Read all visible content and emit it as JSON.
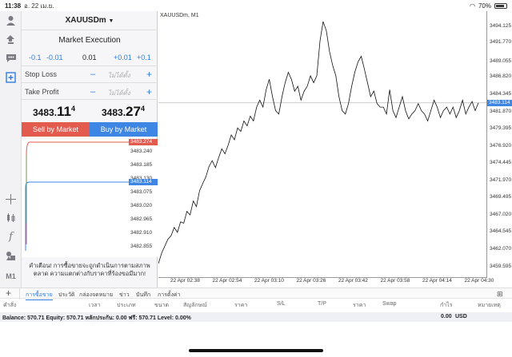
{
  "statusbar": {
    "time": "11:38",
    "date": "อ. 22 เม.ย.",
    "battery": "70%",
    "battery_level": 0.7
  },
  "order": {
    "symbol": "XAUUSDm",
    "execution": "Market Execution",
    "lot_buttons": [
      "-0.1",
      "-0.01",
      "0.01",
      "+0.01",
      "+0.1"
    ],
    "stop_loss_label": "Stop Loss",
    "take_profit_label": "Take Profit",
    "not_set": "ไม่ได้ตั้ง",
    "bid_small": "3483.",
    "bid_big": "11",
    "bid_sup": "4",
    "ask_small": "3483.",
    "ask_big": "27",
    "ask_sup": "4",
    "sell_label": "Sell by Market",
    "buy_label": "Buy by Market",
    "warning": "คำเตือน! การซื้อขายจะถูกดำเนินการตามสภาพตลาด ความแตกต่างกับราคาที่ร้องขอมีมาก!"
  },
  "mini_chart": {
    "ticks": [
      "3483.240",
      "3483.185",
      "3483.130",
      "3483.075",
      "3483.020",
      "3482.965",
      "3482.910",
      "3482.855"
    ],
    "ask_tag": "3483.274",
    "bid_tag": "3483.114",
    "colors": {
      "ask": "#e35a4e",
      "bid": "#3d86e4"
    }
  },
  "chart": {
    "title": "XAUUSDm, M1",
    "price_tag": "3483.114",
    "y_ticks": [
      "3494.125",
      "3491.770",
      "3489.055",
      "3486.820",
      "3484.345",
      "3481.870",
      "3479.395",
      "3476.920",
      "3474.445",
      "3471.970",
      "3469.495",
      "3467.020",
      "3464.545",
      "3462.070",
      "3459.595"
    ],
    "x_ticks": [
      "22 Apr 02:38",
      "22 Apr 02:54",
      "22 Apr 03:10",
      "22 Apr 03:26",
      "22 Apr 03:42",
      "22 Apr 03:58",
      "22 Apr 04:14",
      "22 Apr 04:30"
    ]
  },
  "chart_data": {
    "type": "line",
    "title": "XAUUSDm, M1",
    "xlabel": "",
    "ylabel": "",
    "x_range": [
      "22 Apr 02:30",
      "22 Apr 04:32"
    ],
    "ylim": [
      3458.4,
      3495.6
    ],
    "grid": false,
    "series": [
      {
        "values": [
          3460.0,
          3461.5,
          3462.5,
          3463.5,
          3464.0,
          3465.2,
          3464.5,
          3466.0,
          3465.8,
          3467.5,
          3467.0,
          3469.0,
          3468.2,
          3470.5,
          3471.5,
          3472.5,
          3474.0,
          3474.8,
          3473.8,
          3475.2,
          3476.5,
          3475.8,
          3477.0,
          3478.5,
          3477.8,
          3479.5,
          3479.0,
          3480.5,
          3479.8,
          3481.2,
          3480.5,
          3482.5,
          3483.5,
          3482.5,
          3485.0,
          3486.5,
          3484.0,
          3482.0,
          3481.5,
          3484.0,
          3486.0,
          3487.5,
          3486.5,
          3484.8,
          3485.5,
          3483.5,
          3484.8,
          3485.5,
          3487.0,
          3486.0,
          3487.0,
          3492.0,
          3494.8,
          3493.5,
          3490.5,
          3488.5,
          3487.0,
          3484.0,
          3482.0,
          3481.5,
          3483.0,
          3485.5,
          3487.5,
          3489.0,
          3489.8,
          3488.0,
          3486.0,
          3484.0,
          3484.8,
          3483.0,
          3482.5,
          3482.5,
          3481.5,
          3485.0,
          3482.0,
          3481.0,
          3482.5,
          3484.0,
          3482.0,
          3480.8,
          3481.5,
          3482.0,
          3483.0,
          3482.0,
          3481.5,
          3480.5,
          3482.0,
          3483.5,
          3482.5,
          3481.0,
          3482.0,
          3482.5,
          3481.5,
          3482.5,
          3481.0,
          3482.0,
          3483.5,
          3481.5,
          3482.5,
          3483.3,
          3482.0,
          3483.1
        ]
      }
    ]
  },
  "tabs": [
    "การซื้อขาย",
    "ประวัติ",
    "กล่องจดหมาย",
    "ข่าว",
    "บันทึก",
    "การตั้งค่า"
  ],
  "columns": [
    "คำสั่ง",
    "เวลา",
    "ประเภท",
    "ขนาด",
    "สัญลักษณ์",
    "ราคา",
    "S/L",
    "T/P",
    "ราคา",
    "Swap",
    "กำไร",
    "หมายเหตุ"
  ],
  "balance": {
    "text": "Balance: 570.71  Equity: 570.71  หลักประกัน: 0.00  ฟรี: 570.71  Level: 0.00%",
    "profit": "0.00",
    "currency": "USD"
  }
}
